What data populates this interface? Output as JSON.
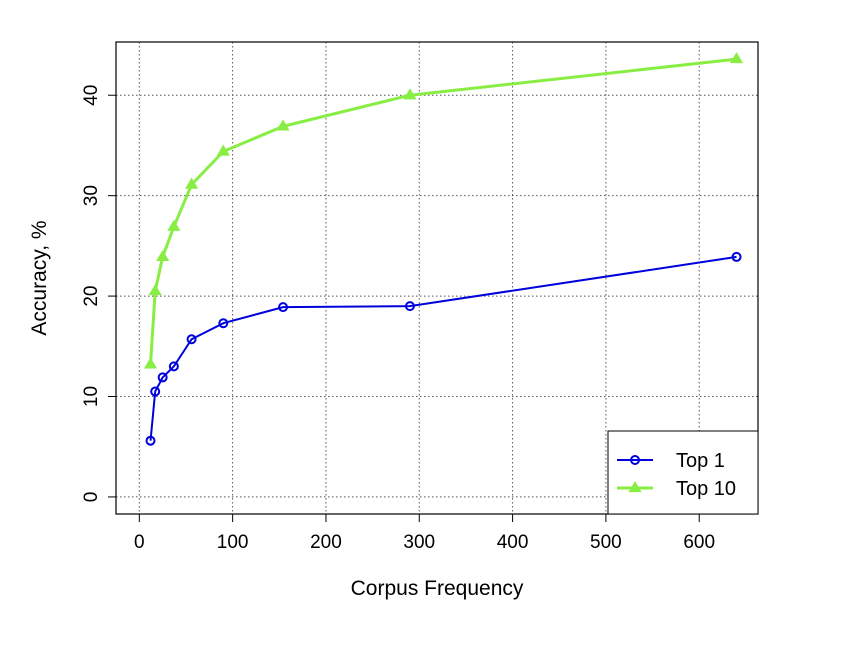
{
  "chart_data": {
    "type": "line",
    "title": "",
    "xlabel": "Corpus Frequency",
    "ylabel": "Accuracy, %",
    "xlim": [
      -25,
      663
    ],
    "ylim": [
      -1.7,
      45.3
    ],
    "xticks": [
      0,
      100,
      200,
      300,
      400,
      500,
      600
    ],
    "yticks": [
      0,
      10,
      20,
      30,
      40
    ],
    "grid": true,
    "legend_position": "bottom-right",
    "series": [
      {
        "name": "Top 1",
        "color": "#0000dd",
        "marker": "circle",
        "x": [
          12,
          17,
          25,
          37,
          56,
          90,
          154,
          290,
          640
        ],
        "y": [
          5.6,
          10.5,
          11.9,
          13.0,
          15.7,
          17.3,
          18.9,
          19.0,
          23.9
        ]
      },
      {
        "name": "Top 10",
        "color": "#88ee44",
        "marker": "triangle",
        "x": [
          12,
          17,
          25,
          37,
          56,
          90,
          154,
          290,
          640
        ],
        "y": [
          13.2,
          20.5,
          23.9,
          26.9,
          31.1,
          34.4,
          36.9,
          40.0,
          43.6
        ]
      }
    ]
  }
}
